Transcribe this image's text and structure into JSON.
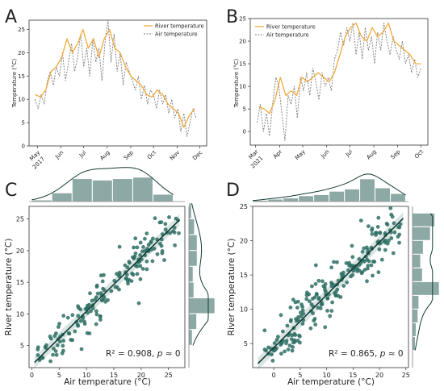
{
  "colors": {
    "river": "#f2a93b",
    "air": "#7a7a7a",
    "scatter": "#2e6e64",
    "hist_fill": "#8da9a5",
    "fit_line": "#123c35"
  },
  "chart_data": [
    {
      "panel": "A",
      "type": "line",
      "ylabel": "Temperature (°C)",
      "ylim": [
        0,
        27
      ],
      "yticks": [
        0,
        5,
        10,
        15,
        20,
        25
      ],
      "xdomain": [
        "2017-04-20",
        "2017-12-10"
      ],
      "xticks": [
        {
          "date": "2017-05-01",
          "label": "May",
          "sublabel": "2017"
        },
        {
          "date": "2017-06-01",
          "label": "Jun",
          "sublabel": ""
        },
        {
          "date": "2017-07-01",
          "label": "Jul",
          "sublabel": ""
        },
        {
          "date": "2017-08-01",
          "label": "Aug",
          "sublabel": ""
        },
        {
          "date": "2017-09-01",
          "label": "Sep",
          "sublabel": ""
        },
        {
          "date": "2017-10-01",
          "label": "Oct",
          "sublabel": ""
        },
        {
          "date": "2017-11-01",
          "label": "Nov",
          "sublabel": ""
        },
        {
          "date": "2017-12-01",
          "label": "Dec",
          "sublabel": ""
        }
      ],
      "legend": {
        "position": "top-right",
        "river_label": "River temperature",
        "air_label": "Air temperature"
      },
      "series": [
        {
          "name": "River temperature",
          "style": "solid",
          "x": [
            "2017-04-28",
            "2017-05-05",
            "2017-05-12",
            "2017-05-19",
            "2017-05-26",
            "2017-06-02",
            "2017-06-09",
            "2017-06-16",
            "2017-06-23",
            "2017-06-30",
            "2017-07-07",
            "2017-07-14",
            "2017-07-21",
            "2017-07-28",
            "2017-08-04",
            "2017-08-11",
            "2017-08-18",
            "2017-08-25",
            "2017-09-01",
            "2017-09-08",
            "2017-09-15",
            "2017-09-22",
            "2017-09-29",
            "2017-10-06",
            "2017-10-13",
            "2017-10-20",
            "2017-10-27",
            "2017-11-03",
            "2017-11-10",
            "2017-11-17",
            "2017-11-24"
          ],
          "y": [
            11,
            10.5,
            12,
            16,
            17,
            19,
            23,
            20,
            22,
            25,
            21,
            23,
            19,
            23,
            25,
            21,
            20,
            17,
            15,
            14,
            13,
            11,
            10.5,
            12,
            11,
            9,
            8,
            7,
            4,
            6.5,
            8
          ]
        },
        {
          "name": "Air temperature",
          "style": "dashed",
          "x": [
            "2017-04-28",
            "2017-05-02",
            "2017-05-06",
            "2017-05-10",
            "2017-05-14",
            "2017-05-18",
            "2017-05-22",
            "2017-05-26",
            "2017-05-30",
            "2017-06-03",
            "2017-06-07",
            "2017-06-11",
            "2017-06-15",
            "2017-06-19",
            "2017-06-23",
            "2017-06-27",
            "2017-07-01",
            "2017-07-05",
            "2017-07-09",
            "2017-07-13",
            "2017-07-17",
            "2017-07-21",
            "2017-07-25",
            "2017-07-29",
            "2017-08-02",
            "2017-08-06",
            "2017-08-10",
            "2017-08-14",
            "2017-08-18",
            "2017-08-22",
            "2017-08-26",
            "2017-08-30",
            "2017-09-03",
            "2017-09-07",
            "2017-09-11",
            "2017-09-15",
            "2017-09-19",
            "2017-09-23",
            "2017-09-27",
            "2017-10-01",
            "2017-10-05",
            "2017-10-09",
            "2017-10-13",
            "2017-10-17",
            "2017-10-21",
            "2017-10-25",
            "2017-10-29",
            "2017-11-02",
            "2017-11-06",
            "2017-11-10",
            "2017-11-14",
            "2017-11-18",
            "2017-11-22",
            "2017-11-26"
          ],
          "y": [
            10,
            8,
            11,
            9,
            14,
            16,
            13,
            17,
            15,
            20,
            14,
            18,
            22,
            16,
            19,
            24,
            17,
            21,
            15,
            23,
            18,
            21,
            14,
            22,
            27,
            18,
            24,
            16,
            20,
            13,
            18,
            16,
            14,
            12,
            15,
            10,
            13,
            9,
            12,
            11,
            8,
            12,
            9,
            11,
            7,
            10,
            6,
            8,
            3,
            7,
            2,
            5,
            8,
            6
          ]
        }
      ]
    },
    {
      "panel": "B",
      "type": "line",
      "ylabel": "Temperature (°C)",
      "ylim": [
        -3,
        25
      ],
      "yticks": [
        0,
        5,
        10,
        15,
        20,
        25
      ],
      "xdomain": [
        "2021-02-22",
        "2021-10-10"
      ],
      "xticks": [
        {
          "date": "2021-03-01",
          "label": "Mar",
          "sublabel": "2021"
        },
        {
          "date": "2021-04-01",
          "label": "Apr",
          "sublabel": ""
        },
        {
          "date": "2021-05-01",
          "label": "May",
          "sublabel": ""
        },
        {
          "date": "2021-06-01",
          "label": "Jun",
          "sublabel": ""
        },
        {
          "date": "2021-07-01",
          "label": "Jul",
          "sublabel": ""
        },
        {
          "date": "2021-08-01",
          "label": "Aug",
          "sublabel": ""
        },
        {
          "date": "2021-09-01",
          "label": "Sep",
          "sublabel": ""
        },
        {
          "date": "2021-10-01",
          "label": "Oct",
          "sublabel": ""
        }
      ],
      "legend": {
        "position": "top-left",
        "river_label": "River temperature",
        "air_label": "Air temperature"
      },
      "series": [
        {
          "name": "River temperature",
          "style": "solid",
          "x": [
            "2021-03-05",
            "2021-03-12",
            "2021-03-19",
            "2021-03-26",
            "2021-04-02",
            "2021-04-09",
            "2021-04-16",
            "2021-04-23",
            "2021-04-30",
            "2021-05-07",
            "2021-05-14",
            "2021-05-21",
            "2021-05-28",
            "2021-06-04",
            "2021-06-11",
            "2021-06-18",
            "2021-06-25",
            "2021-07-02",
            "2021-07-09",
            "2021-07-16",
            "2021-07-23",
            "2021-07-30",
            "2021-08-06",
            "2021-08-13",
            "2021-08-20",
            "2021-08-27",
            "2021-09-03",
            "2021-09-10",
            "2021-09-17",
            "2021-09-24",
            "2021-10-01"
          ],
          "y": [
            5.5,
            5,
            4,
            7,
            12,
            8,
            9,
            8,
            12,
            11,
            12,
            13,
            12,
            11,
            13,
            17,
            21,
            23,
            24,
            21,
            20,
            23,
            21,
            22,
            24,
            20,
            19,
            18,
            17,
            15,
            15
          ]
        },
        {
          "name": "Air temperature",
          "style": "dashed",
          "x": [
            "2021-03-03",
            "2021-03-07",
            "2021-03-11",
            "2021-03-15",
            "2021-03-19",
            "2021-03-23",
            "2021-03-27",
            "2021-03-31",
            "2021-04-04",
            "2021-04-08",
            "2021-04-12",
            "2021-04-16",
            "2021-04-20",
            "2021-04-24",
            "2021-04-28",
            "2021-05-02",
            "2021-05-06",
            "2021-05-10",
            "2021-05-14",
            "2021-05-18",
            "2021-05-22",
            "2021-05-26",
            "2021-05-30",
            "2021-06-03",
            "2021-06-07",
            "2021-06-11",
            "2021-06-15",
            "2021-06-19",
            "2021-06-23",
            "2021-06-27",
            "2021-07-01",
            "2021-07-05",
            "2021-07-09",
            "2021-07-13",
            "2021-07-17",
            "2021-07-21",
            "2021-07-25",
            "2021-07-29",
            "2021-08-02",
            "2021-08-06",
            "2021-08-10",
            "2021-08-14",
            "2021-08-18",
            "2021-08-22",
            "2021-08-26",
            "2021-08-30",
            "2021-09-03",
            "2021-09-07",
            "2021-09-11",
            "2021-09-15",
            "2021-09-19",
            "2021-09-23",
            "2021-09-27",
            "2021-10-01"
          ],
          "y": [
            2,
            6,
            0,
            4,
            -1,
            6,
            12,
            10,
            4,
            -2,
            8,
            6,
            10,
            3,
            12,
            9,
            13,
            8,
            14,
            11,
            7,
            13,
            10,
            12,
            9,
            16,
            18,
            22,
            19,
            23,
            20,
            24,
            17,
            22,
            16,
            23,
            18,
            21,
            15,
            22,
            18,
            24,
            20,
            17,
            21,
            18,
            16,
            20,
            15,
            17,
            13,
            16,
            12,
            14
          ]
        }
      ]
    },
    {
      "panel": "C",
      "type": "scatter",
      "xlabel": "Air temperature (°C)",
      "ylabel": "River temperature (°C)",
      "xlim": [
        -0.5,
        28
      ],
      "ylim": [
        1.5,
        27
      ],
      "xticks": [
        0,
        5,
        10,
        15,
        20,
        25
      ],
      "yticks": [
        5,
        10,
        15,
        20,
        25
      ],
      "fit": {
        "slope": 0.85,
        "intercept": 1.9
      },
      "annotation": {
        "r2_text": "R² = 0.908, ",
        "p_symbol": "p",
        "p_value": " ≈ 0"
      },
      "n_points": 180,
      "scatter_noise_sd": 1.7,
      "x_range": [
        1,
        27
      ],
      "top_hist": {
        "bins": [
          0,
          3.7,
          7.4,
          11.1,
          14.8,
          18.5,
          22.2,
          25.9
        ],
        "counts": [
          1,
          6,
          16,
          15,
          16,
          17,
          5
        ]
      },
      "right_hist": {
        "bins": [
          5,
          7.5,
          10,
          12.5,
          15,
          17.5,
          20,
          22.5,
          25,
          27.5
        ],
        "counts": [
          12,
          28,
          95,
          18,
          15,
          30,
          30,
          20,
          9
        ]
      }
    },
    {
      "panel": "D",
      "type": "scatter",
      "xlabel": "Air temperature (°C)",
      "ylabel": "River temperature (°C)",
      "xlim": [
        -4,
        25.5
      ],
      "ylim": [
        1.5,
        25
      ],
      "xticks": [
        0,
        5,
        10,
        15,
        20,
        25
      ],
      "yticks": [
        5,
        10,
        15,
        20,
        25
      ],
      "fit": {
        "slope": 0.77,
        "intercept": 4.4
      },
      "annotation": {
        "r2_text": "R² = 0.865, ",
        "p_symbol": "p",
        "p_value": " ≈ 0"
      },
      "n_points": 220,
      "scatter_noise_sd": 1.9,
      "x_range": [
        -2,
        24
      ],
      "top_hist": {
        "bins": [
          -4,
          -1.1,
          1.8,
          4.7,
          7.6,
          10.5,
          13.4,
          16.3,
          19.2,
          22.1,
          25
        ],
        "counts": [
          1,
          2,
          3,
          5,
          6,
          9,
          11,
          20,
          12,
          7
        ]
      },
      "right_hist": {
        "bins": [
          4,
          6,
          8,
          10,
          12,
          14,
          16,
          18,
          20,
          22,
          24
        ],
        "counts": [
          6,
          8,
          12,
          14,
          60,
          22,
          18,
          24,
          40,
          50
        ]
      }
    }
  ],
  "panel_labels": [
    "A",
    "B",
    "C",
    "D"
  ]
}
